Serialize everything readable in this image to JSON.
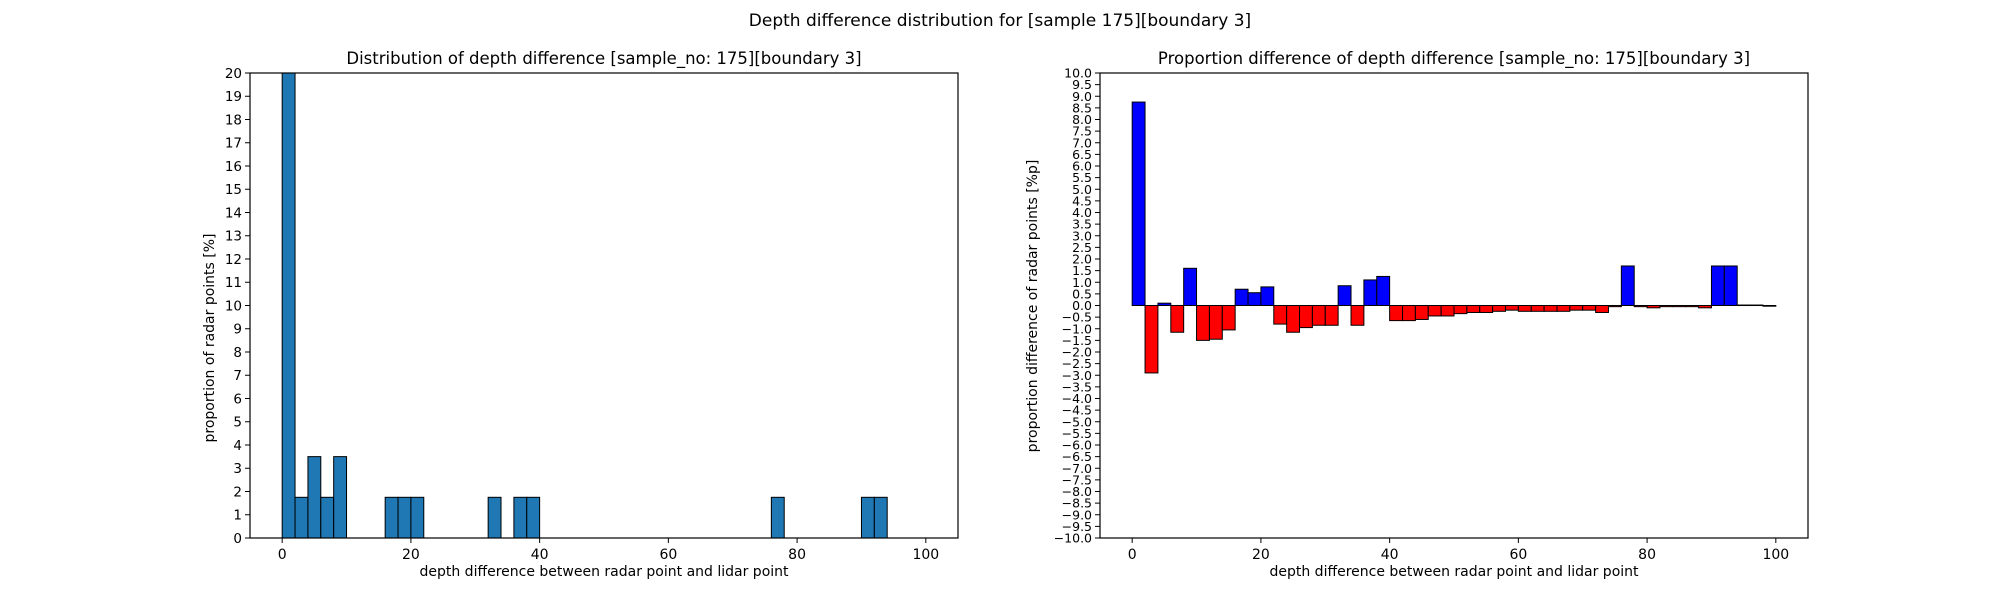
{
  "suptitle": "Depth difference distribution for [sample 175][boundary 3]",
  "chart_data": [
    {
      "type": "bar",
      "title": "Distribution of depth difference [sample_no: 175][boundary 3]",
      "xlabel": "depth difference between radar point and lidar point",
      "ylabel": "proportion of radar points [%]",
      "xlim": [
        -5,
        105
      ],
      "ylim": [
        0,
        20
      ],
      "xticks": [
        0,
        20,
        40,
        60,
        80,
        100
      ],
      "yticks": [
        0,
        1,
        2,
        3,
        4,
        5,
        6,
        7,
        8,
        9,
        10,
        11,
        12,
        13,
        14,
        15,
        16,
        17,
        18,
        19,
        20
      ],
      "bin_width": 2,
      "x": [
        0,
        2,
        4,
        6,
        8,
        16,
        18,
        20,
        32,
        36,
        38,
        76,
        90,
        92
      ],
      "values": [
        20,
        1.75,
        3.5,
        1.75,
        3.5,
        1.75,
        1.75,
        1.75,
        1.75,
        1.75,
        1.75,
        1.75,
        1.75,
        1.75
      ],
      "bar_color": "#1f77b4",
      "grid": false
    },
    {
      "type": "bar",
      "title": "Proportion difference of depth difference [sample_no: 175][boundary 3]",
      "xlabel": "depth difference between radar point and lidar point",
      "ylabel": "proportion difference of radar points [%p]",
      "xlim": [
        -5,
        105
      ],
      "ylim": [
        -10,
        10
      ],
      "xticks": [
        0,
        20,
        40,
        60,
        80,
        100
      ],
      "ytick_step": 0.5,
      "bin_width": 2,
      "x": [
        0,
        2,
        4,
        6,
        8,
        10,
        12,
        14,
        16,
        18,
        20,
        22,
        24,
        26,
        28,
        30,
        32,
        34,
        36,
        38,
        40,
        42,
        44,
        46,
        48,
        50,
        52,
        54,
        56,
        58,
        60,
        62,
        64,
        66,
        68,
        70,
        72,
        74,
        76,
        78,
        80,
        82,
        84,
        86,
        88,
        90,
        92,
        94,
        96,
        98
      ],
      "values": [
        8.75,
        -2.9,
        0.1,
        -1.15,
        1.6,
        -1.5,
        -1.45,
        -1.05,
        0.7,
        0.55,
        0.8,
        -0.8,
        -1.15,
        -0.95,
        -0.85,
        -0.85,
        0.85,
        -0.85,
        1.1,
        1.25,
        -0.65,
        -0.65,
        -0.6,
        -0.45,
        -0.45,
        -0.35,
        -0.3,
        -0.3,
        -0.25,
        -0.2,
        -0.25,
        -0.25,
        -0.25,
        -0.25,
        -0.2,
        -0.2,
        -0.3,
        -0.05,
        1.7,
        -0.05,
        -0.1,
        -0.05,
        -0.05,
        -0.05,
        -0.1,
        1.7,
        1.7,
        0.02,
        0.02,
        -0.03
      ],
      "positive_color": "#0000ff",
      "negative_color": "#ff0000",
      "grid": false
    }
  ]
}
